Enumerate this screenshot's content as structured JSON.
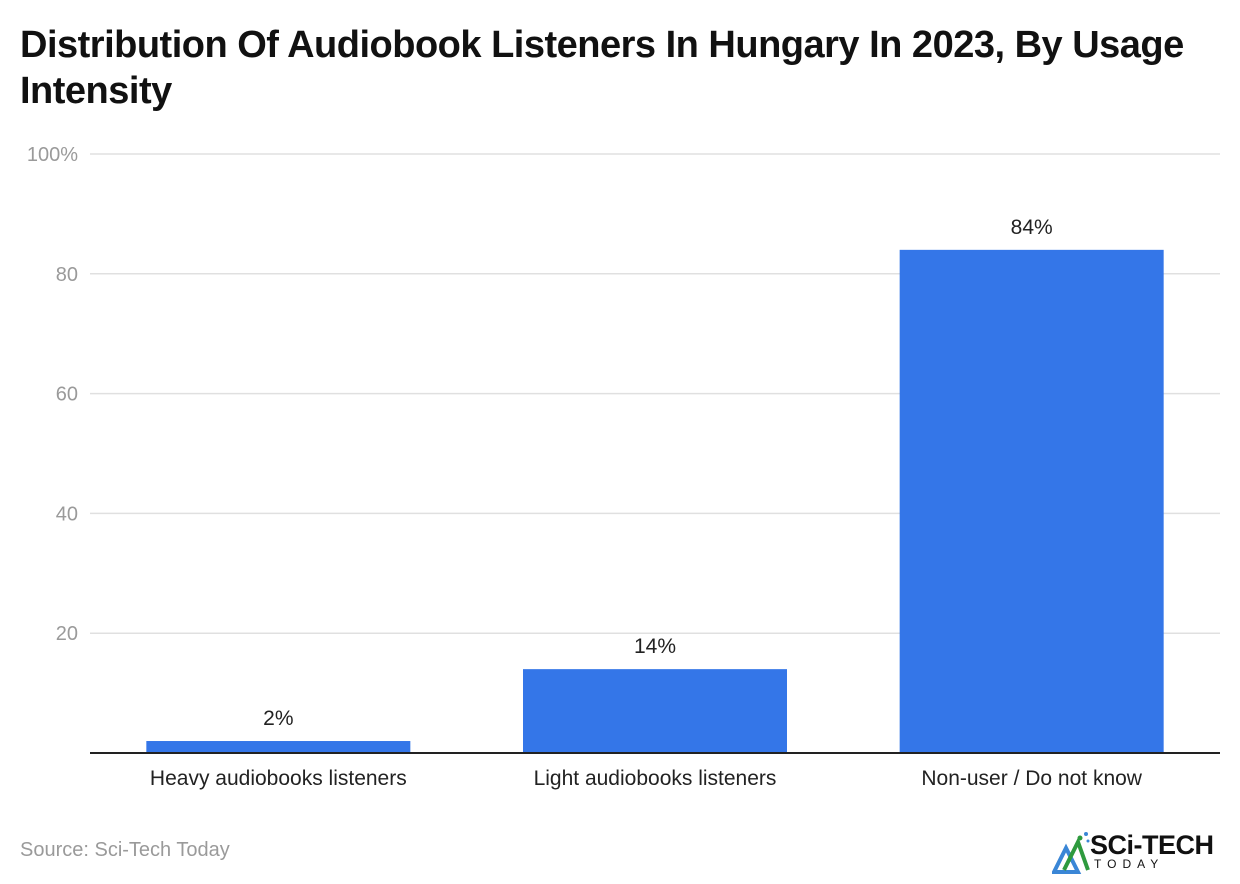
{
  "title": "Distribution Of Audiobook Listeners In Hungary In 2023, By Usage Intensity",
  "source": "Source: Sci-Tech Today",
  "logo": {
    "main": "SCi-TECH",
    "sub": "TODAY"
  },
  "colors": {
    "bar": "#3476e8",
    "grid": "#e0e0e0",
    "axis": "#222222"
  },
  "chart_data": {
    "type": "bar",
    "title": "Distribution Of Audiobook Listeners In Hungary In 2023, By Usage Intensity",
    "xlabel": "",
    "ylabel": "",
    "categories": [
      "Heavy audiobooks listeners",
      "Light audiobooks listeners",
      "Non-user / Do not know"
    ],
    "values": [
      2,
      14,
      84
    ],
    "data_labels": [
      "2%",
      "14%",
      "84%"
    ],
    "ylim": [
      0,
      100
    ],
    "yticks": [
      20,
      40,
      60,
      80,
      100
    ],
    "ytick_labels": [
      "20",
      "40",
      "60",
      "80",
      "100%"
    ],
    "grid": true,
    "legend": "none"
  }
}
